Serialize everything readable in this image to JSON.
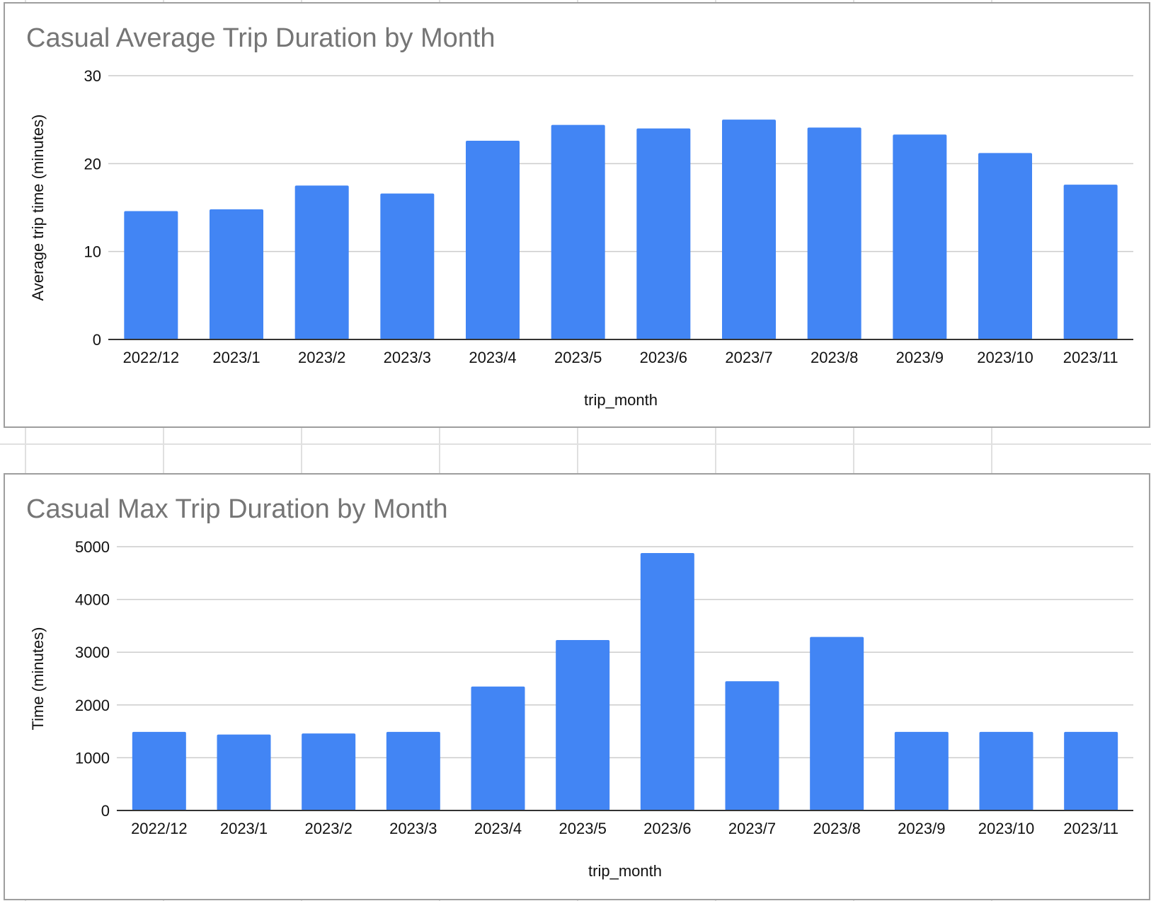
{
  "colors": {
    "bar": "#4285f4",
    "grid": "#cccccc",
    "baseline": "#333333",
    "title": "#757575",
    "card_border": "#9e9e9e",
    "sheet_grid": "#e0e0e0"
  },
  "charts": [
    {
      "title": "Casual Average Trip Duration by Month",
      "xlabel": "trip_month",
      "ylabel": "Average trip time (minutes)"
    },
    {
      "title": "Casual Max Trip Duration by Month",
      "xlabel": "trip_month",
      "ylabel": "Time (minutes)"
    }
  ],
  "chart_data": [
    {
      "type": "bar",
      "title": "Casual Average Trip Duration by Month",
      "xlabel": "trip_month",
      "ylabel": "Average trip time (minutes)",
      "categories": [
        "2022/12",
        "2023/1",
        "2023/2",
        "2023/3",
        "2023/4",
        "2023/5",
        "2023/6",
        "2023/7",
        "2023/8",
        "2023/9",
        "2023/10",
        "2023/11"
      ],
      "values": [
        14.6,
        14.8,
        17.5,
        16.6,
        22.6,
        24.4,
        24.0,
        25.0,
        24.1,
        23.3,
        21.2,
        17.6
      ],
      "ylim": [
        0,
        30
      ],
      "yticks": [
        0,
        10,
        20,
        30
      ],
      "grid": true,
      "legend": "none"
    },
    {
      "type": "bar",
      "title": "Casual Max Trip Duration by Month",
      "xlabel": "trip_month",
      "ylabel": "Time (minutes)",
      "categories": [
        "2022/12",
        "2023/1",
        "2023/2",
        "2023/3",
        "2023/4",
        "2023/5",
        "2023/6",
        "2023/7",
        "2023/8",
        "2023/9",
        "2023/10",
        "2023/11"
      ],
      "values": [
        1490,
        1440,
        1460,
        1490,
        2350,
        3230,
        4880,
        2450,
        3290,
        1490,
        1490,
        1490
      ],
      "ylim": [
        0,
        5000
      ],
      "yticks": [
        0,
        1000,
        2000,
        3000,
        4000,
        5000
      ],
      "grid": true,
      "legend": "none"
    }
  ]
}
